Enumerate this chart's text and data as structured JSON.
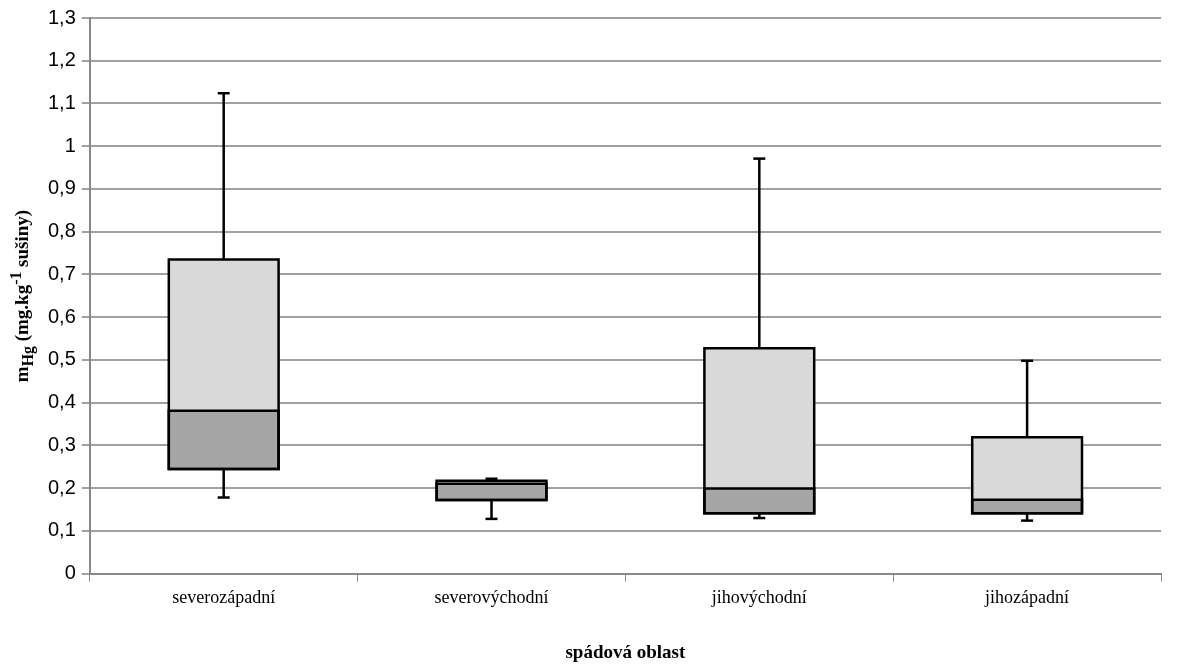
{
  "chart_data": {
    "type": "box",
    "xlabel": "spádová oblast",
    "ylabel": "m$_{Hg}$ (mg.kg$^{-1}$ sušiny)",
    "categories": [
      "severozápadní",
      "severovýchodní",
      "jihovýchodní",
      "jihozápadní"
    ],
    "series": [
      {
        "color": "#d9d9d9",
        "boxes": [
          {
            "low": 0.178,
            "q1": 0.245,
            "median": 0.381,
            "q3": 0.735,
            "high": 1.124
          },
          {
            "low": 0.128,
            "q1": 0.172,
            "median": 0.21,
            "q3": 0.217,
            "high": 0.222
          },
          {
            "low": 0.13,
            "q1": 0.141,
            "median": 0.199,
            "q3": 0.527,
            "high": 0.971
          },
          {
            "low": 0.124,
            "q1": 0.141,
            "median": 0.173,
            "q3": 0.319,
            "high": 0.498
          }
        ]
      }
    ],
    "ylim": [
      0,
      1.3
    ],
    "yticks": [
      0,
      {
        "value": 0.1,
        "label": "0,1"
      },
      {
        "value": 0.2,
        "label": "0,2"
      },
      {
        "value": 0.3,
        "label": "0,3"
      },
      {
        "value": 0.4,
        "label": "0,4"
      },
      {
        "value": 0.5,
        "label": "0,5"
      },
      {
        "value": 0.6,
        "label": "0,6"
      },
      {
        "value": 0.7,
        "label": "0,7"
      },
      {
        "value": 0.8,
        "label": "0,8"
      },
      {
        "value": 0.9,
        "label": "0,9"
      },
      1,
      {
        "value": 1.1,
        "label": "1,1"
      },
      {
        "value": 1.2,
        "label": "1,2"
      },
      {
        "value": 1.3,
        "label": "1,3"
      }
    ],
    "grid": true
  }
}
